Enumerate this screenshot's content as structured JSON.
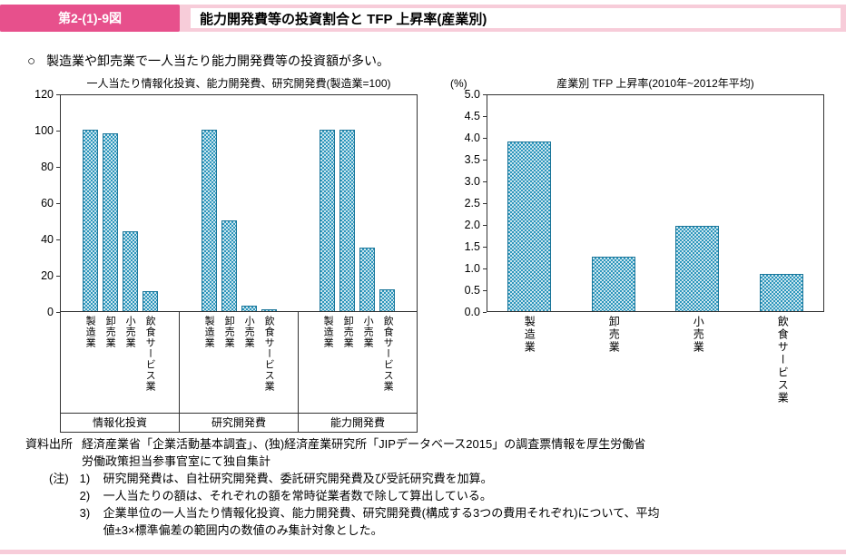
{
  "colors": {
    "accent_pink": "#e7508c",
    "band_pink": "#f7ccd9",
    "bar_fill": "#2d96bc",
    "bar_border": "#1b769a"
  },
  "header": {
    "figure_label": "第2-(1)-9図",
    "title": "能力開発費等の投資割合と TFP 上昇率(産業別)"
  },
  "lead": {
    "bullet": "○",
    "text": "製造業や卸売業で一人当たり能力開発費等の投資額が多い。"
  },
  "chart_data": [
    {
      "type": "bar",
      "title": "一人当たり情報化投資、能力開発費、研究開発費(製造業=100)",
      "ylim": [
        0,
        120
      ],
      "yticks": [
        0,
        20,
        40,
        60,
        80,
        100,
        120
      ],
      "grid": false,
      "legend": false,
      "groups": [
        {
          "label": "情報化投資",
          "categories": [
            "製造業",
            "卸売業",
            "小売業",
            "飲食サービス業"
          ],
          "values": [
            100,
            98,
            44,
            11
          ]
        },
        {
          "label": "研究開発費",
          "categories": [
            "製造業",
            "卸売業",
            "小売業",
            "飲食サービス業"
          ],
          "values": [
            100,
            50,
            3,
            1
          ]
        },
        {
          "label": "能力開発費",
          "categories": [
            "製造業",
            "卸売業",
            "小売業",
            "飲食サービス業"
          ],
          "values": [
            100,
            100,
            35,
            12
          ]
        }
      ]
    },
    {
      "type": "bar",
      "title": "産業別 TFP 上昇率(2010年~2012年平均)",
      "unit_label": "(%)",
      "ylim": [
        0,
        5
      ],
      "yticks": [
        "0.0",
        "0.5",
        "1.0",
        "1.5",
        "2.0",
        "2.5",
        "3.0",
        "3.5",
        "4.0",
        "4.5",
        "5.0"
      ],
      "grid": false,
      "legend": false,
      "categories": [
        "製造業",
        "卸売業",
        "小売業",
        "飲食サービス業"
      ],
      "values": [
        3.9,
        1.25,
        1.95,
        0.85
      ]
    }
  ],
  "notes": {
    "source_label": "資料出所",
    "source_line1": "経済産業省「企業活動基本調査」、(独)経済産業研究所「JIPデータベース2015」の調査票情報を厚生労働省",
    "source_line2": "労働政策担当参事官室にて独自集計",
    "note_label": "(注)",
    "items": [
      {
        "num": "1)",
        "text": "研究開発費は、自社研究開発費、委託研究開発費及び受託研究費を加算。"
      },
      {
        "num": "2)",
        "text": "一人当たりの額は、それぞれの額を常時従業者数で除して算出している。"
      },
      {
        "num": "3)",
        "text": "企業単位の一人当たり情報化投資、能力開発費、研究開発費(構成する3つの費用それぞれ)について、平均値±3×標準偏差の範囲内の数値のみ集計対象とした。"
      }
    ]
  }
}
